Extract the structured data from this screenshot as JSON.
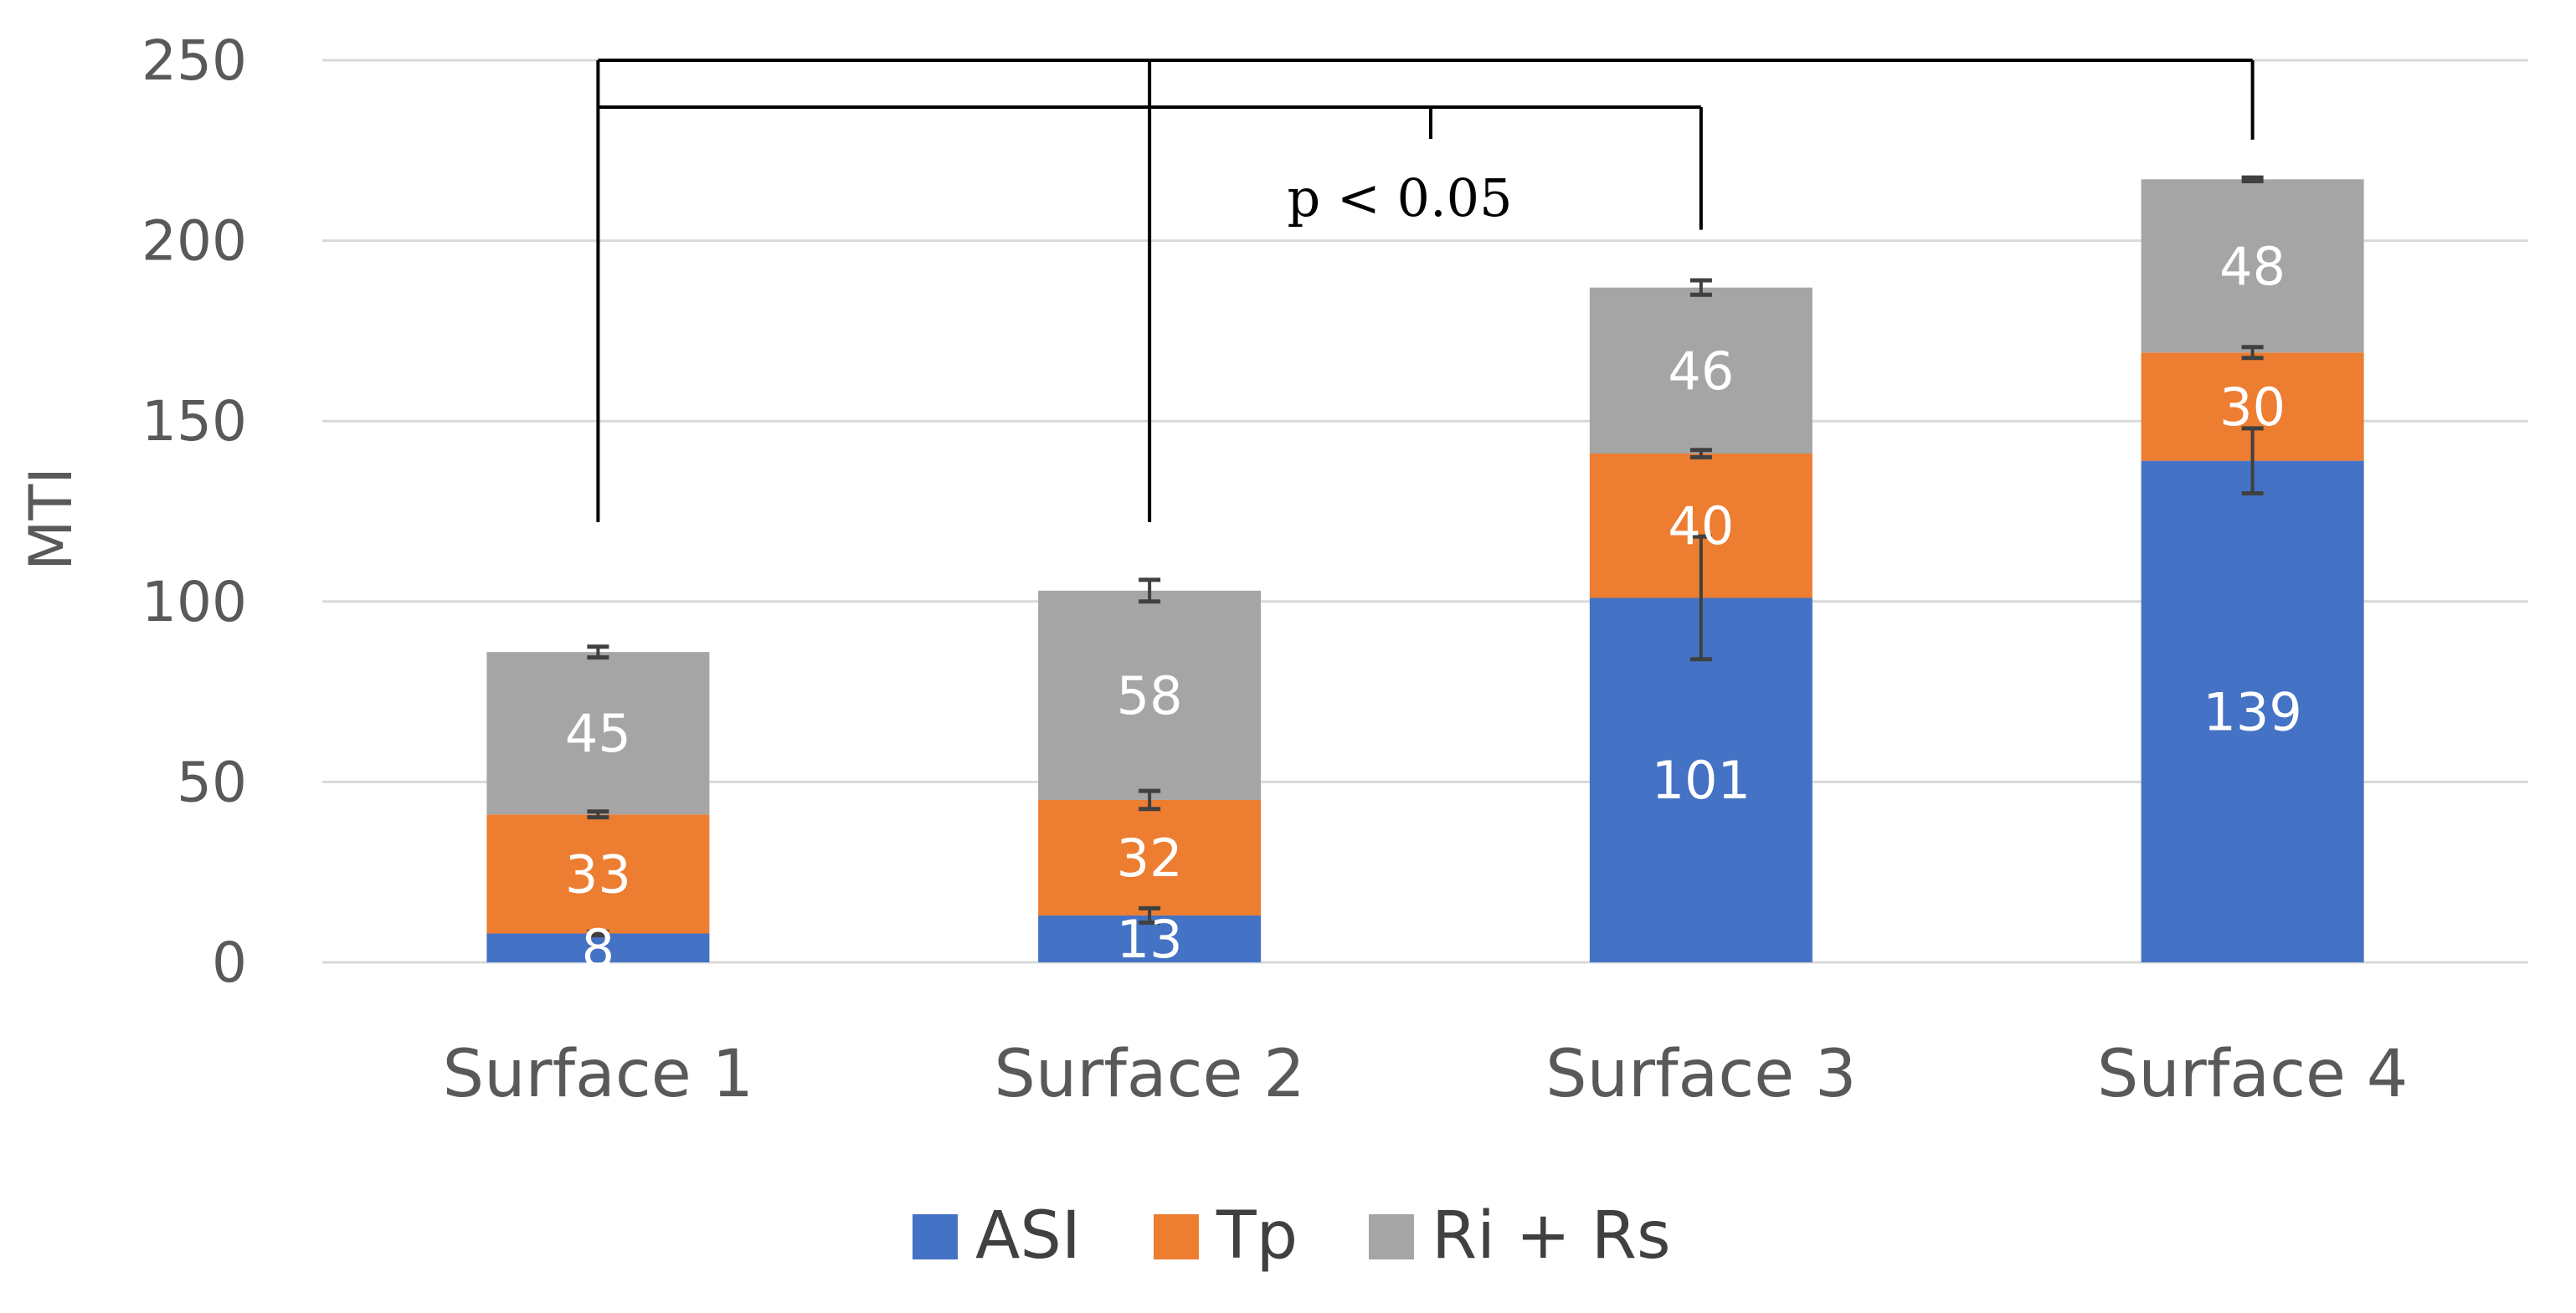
{
  "chart_data": {
    "type": "stacked-bar",
    "categories": [
      "Surface 1",
      "Surface 2",
      "Surface 3",
      "Surface 4"
    ],
    "series": [
      {
        "name": "ASI",
        "color": "#4472C4",
        "values": [
          8,
          13,
          101,
          139
        ],
        "errors": [
          0.5,
          2,
          17,
          9
        ],
        "labels": [
          "8",
          "13",
          "101",
          "139"
        ]
      },
      {
        "name": "Tp",
        "color": "#ED7D31",
        "values": [
          33,
          32,
          40,
          30
        ],
        "errors": [
          0.8,
          2.5,
          1,
          1.5
        ],
        "labels": [
          "33",
          "32",
          "40",
          "30"
        ]
      },
      {
        "name": "Ri + Rs",
        "color": "#A5A5A5",
        "values": [
          45,
          58,
          46,
          48
        ],
        "errors": [
          1.5,
          3,
          2,
          0.5
        ],
        "labels": [
          "45",
          "58",
          "46",
          "48"
        ]
      }
    ],
    "ylabel": "MTI",
    "ylim": [
      0,
      250
    ],
    "yticks": [
      0,
      50,
      100,
      150,
      200,
      250
    ],
    "ytick_labels": [
      "0",
      "50",
      "100",
      "150",
      "200",
      "250"
    ],
    "grid": true,
    "legend_position": "bottom",
    "annotation": {
      "text": "p < 0.05",
      "comparisons": [
        {
          "from": "Surface 1",
          "to": "Surface 4",
          "level": 250
        },
        {
          "from": "Surface 1",
          "to": "Surface 3",
          "level": 237
        }
      ],
      "group_top": 238,
      "drop_to_surface_3": 203,
      "drop_to_surface_4": 228,
      "drop_to_surface_1_2": 122
    }
  }
}
